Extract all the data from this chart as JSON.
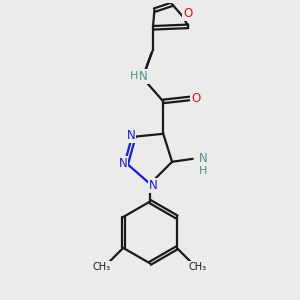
{
  "bg_color": "#ebebeb",
  "bond_color": "#1a1a1a",
  "n_color": "#1a1acc",
  "o_color": "#cc1a1a",
  "nh_color": "#4a9090",
  "bond_width": 1.6,
  "figsize": [
    3.0,
    3.0
  ],
  "dpi": 100,
  "xlim": [
    0,
    10
  ],
  "ylim": [
    0,
    10
  ],
  "font_size": 8.5
}
